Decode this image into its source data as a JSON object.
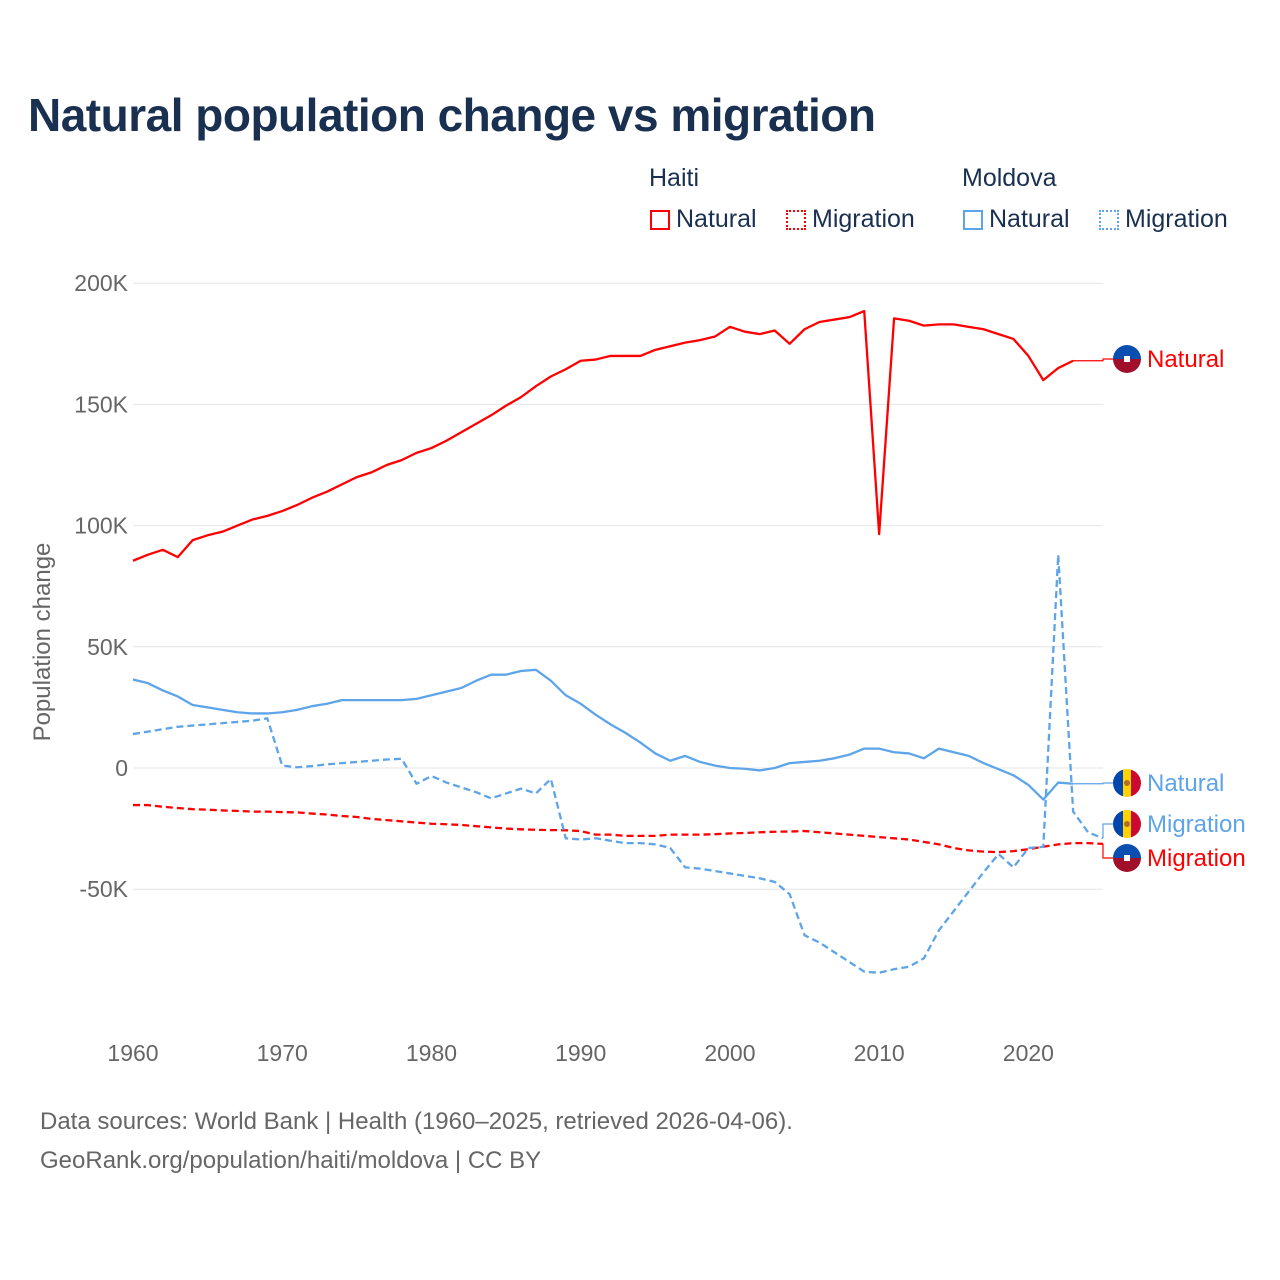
{
  "title": "Natural population change vs migration",
  "legend": {
    "groups": [
      {
        "name": "Haiti",
        "items": [
          {
            "label": "Natural",
            "style": "solid"
          },
          {
            "label": "Migration",
            "style": "dotted"
          }
        ],
        "color": "#ff0000"
      },
      {
        "name": "Moldova",
        "items": [
          {
            "label": "Natural",
            "style": "solid"
          },
          {
            "label": "Migration",
            "style": "dotted"
          }
        ],
        "color": "#5ea4e8"
      }
    ]
  },
  "colors": {
    "haiti": "#ff0000",
    "moldova": "#5ea4e8",
    "grid": "#e6e6e6",
    "axis_text": "#666666"
  },
  "footer": {
    "line1": "Data sources: World Bank | Health (1960–2025, retrieved 2026-04-06).",
    "line2": "GeoRank.org/population/haiti/moldova | CC BY"
  },
  "chart_data": {
    "type": "line",
    "title": "Natural population change vs migration",
    "xlabel": "",
    "ylabel": "Population change",
    "xlim": [
      1960,
      2025
    ],
    "ylim": [
      -100000,
      200000
    ],
    "x_ticks": [
      1960,
      1970,
      1980,
      1990,
      2000,
      2010,
      2020
    ],
    "x_tick_labels": [
      "1960",
      "1970",
      "1980",
      "1990",
      "2000",
      "2010",
      "2020"
    ],
    "y_ticks": [
      200000,
      150000,
      100000,
      50000,
      0,
      -50000
    ],
    "y_tick_labels": [
      "200K",
      "150K",
      "100K",
      "50K",
      "0",
      "-50K"
    ],
    "grid": true,
    "series": [
      {
        "name": "Haiti Natural",
        "end_label": "Natural",
        "country": "haiti",
        "dash": false,
        "start_year": 1960,
        "values": [
          85.5,
          88,
          90,
          87,
          94,
          96,
          97.5,
          100,
          102.5,
          104,
          106,
          108.5,
          111.5,
          114,
          117,
          120,
          122,
          125,
          127,
          130,
          132,
          135,
          138.5,
          142,
          145.5,
          149.5,
          153,
          157.5,
          161.5,
          164.5,
          168,
          168.5,
          170,
          170,
          170,
          172.5,
          174,
          175.5,
          176.5,
          178,
          182,
          180,
          179,
          180.5,
          175,
          181,
          184,
          185,
          186,
          188.5,
          96.5,
          185.5,
          184.5,
          182.5,
          183,
          183,
          182,
          181,
          179,
          177,
          170,
          160,
          165,
          168
        ]
      },
      {
        "name": "Haiti Migration",
        "end_label": "Migration",
        "country": "haiti",
        "dash": true,
        "start_year": 1960,
        "values": [
          -15.3,
          -15.3,
          -16,
          -16.5,
          -17,
          -17.2,
          -17.5,
          -17.7,
          -18,
          -18,
          -18.2,
          -18.3,
          -18.8,
          -19.2,
          -19.8,
          -20.2,
          -21,
          -21.5,
          -22,
          -22.5,
          -23,
          -23.2,
          -23.5,
          -24,
          -24.5,
          -25,
          -25.3,
          -25.5,
          -25.6,
          -25.7,
          -26,
          -27.5,
          -27.5,
          -28,
          -28,
          -28,
          -27.5,
          -27.5,
          -27.5,
          -27.3,
          -27,
          -26.8,
          -26.5,
          -26.3,
          -26.2,
          -26,
          -26.5,
          -27,
          -27.5,
          -28,
          -28.5,
          -29,
          -29.5,
          -30.5,
          -31.5,
          -33,
          -34,
          -34.5,
          -34.7,
          -34.3,
          -33.5,
          -32.5,
          -31.5,
          -31,
          -31,
          -31.3
        ]
      },
      {
        "name": "Moldova Natural",
        "end_label": "Natural",
        "country": "moldova",
        "dash": false,
        "start_year": 1960,
        "values": [
          36.5,
          35,
          32,
          29.5,
          26,
          25,
          24,
          23,
          22.5,
          22.5,
          23,
          24,
          25.5,
          26.5,
          28,
          28,
          28,
          28,
          28,
          28.5,
          30,
          31.5,
          33,
          36,
          38.5,
          38.5,
          40,
          40.5,
          36,
          30,
          26.5,
          22,
          18,
          14.5,
          10.5,
          6,
          3,
          5,
          2.5,
          1,
          0,
          -0.3,
          -1,
          0,
          2,
          2.5,
          3,
          4,
          5.5,
          8,
          8,
          6.5,
          6,
          4,
          8,
          6.5,
          5,
          2,
          -0.5,
          -3,
          -7,
          -13,
          -6,
          -6.5
        ]
      },
      {
        "name": "Moldova Migration",
        "end_label": "Migration",
        "country": "moldova",
        "dash": true,
        "start_year": 1960,
        "values": [
          14,
          15,
          16,
          17,
          17.5,
          18,
          18.5,
          19,
          19.5,
          20.5,
          1,
          0.3,
          0.8,
          1.5,
          2,
          2.5,
          3,
          3.5,
          3.8,
          -6.5,
          -3.3,
          -6,
          -8,
          -10,
          -12.5,
          -10.5,
          -8.5,
          -10.5,
          -4.5,
          -29,
          -29.5,
          -29,
          -30,
          -31,
          -31,
          -31.5,
          -33,
          -41,
          -41.5,
          -42.5,
          -43.5,
          -44.5,
          -45.5,
          -47,
          -52,
          -69,
          -72,
          -76,
          -80,
          -84,
          -84.5,
          -83,
          -82,
          -78.5,
          -67,
          -59,
          -51,
          -43,
          -35.5,
          -41,
          -33,
          -32.5,
          88,
          -18,
          -26.5,
          -29
        ]
      }
    ],
    "value_unit": "thousands"
  }
}
